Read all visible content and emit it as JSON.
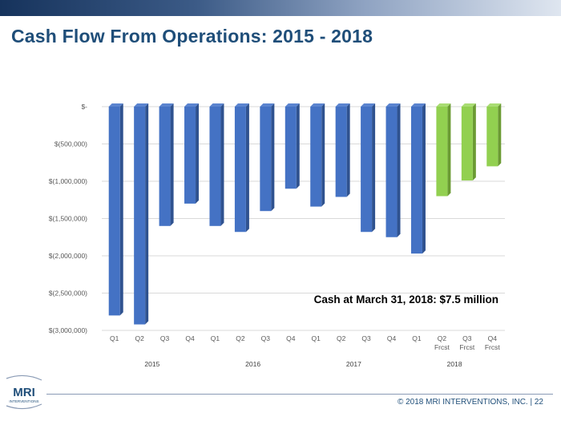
{
  "title": "Cash Flow From Operations: 2015 - 2018",
  "footer": {
    "copyright": "© 2018 MRI INTERVENTIONS, INC.  |  22"
  },
  "logo": {
    "text": "MRI",
    "subtitle": "INTERVENTIONS"
  },
  "colors": {
    "actual": "#4472c4",
    "forecast": "#92d050",
    "title": "#1f4e79"
  },
  "chart_data": {
    "type": "bar",
    "title": "Cash Flow From Operations: 2015 - 2018",
    "xlabel": "",
    "ylabel": "",
    "ylim": [
      -3000000,
      0
    ],
    "y_ticks": [
      {
        "value": 0,
        "label": "$-"
      },
      {
        "value": -500000,
        "label": "$(500,000)"
      },
      {
        "value": -1000000,
        "label": "$(1,000,000)"
      },
      {
        "value": -1500000,
        "label": "$(1,500,000)"
      },
      {
        "value": -2000000,
        "label": "$(2,000,000)"
      },
      {
        "value": -2500000,
        "label": "$(2,500,000)"
      },
      {
        "value": -3000000,
        "label": "$(3,000,000)"
      }
    ],
    "categories": [
      "Q1",
      "Q2",
      "Q3",
      "Q4",
      "Q1",
      "Q2",
      "Q3",
      "Q4",
      "Q1",
      "Q2",
      "Q3",
      "Q4",
      "Q1",
      "Q2",
      "Q3",
      "Q4"
    ],
    "sublabels": [
      "",
      "",
      "",
      "",
      "",
      "",
      "",
      "",
      "",
      "",
      "",
      "",
      "",
      "Frcst",
      "Frcst",
      "Frcst"
    ],
    "years": [
      {
        "label": "2015",
        "start": 0,
        "end": 3
      },
      {
        "label": "2016",
        "start": 4,
        "end": 7
      },
      {
        "label": "2017",
        "start": 8,
        "end": 11
      },
      {
        "label": "2018",
        "start": 12,
        "end": 15
      }
    ],
    "values": [
      -2800000,
      -2920000,
      -1600000,
      -1300000,
      -1600000,
      -1680000,
      -1400000,
      -1100000,
      -1340000,
      -1210000,
      -1680000,
      -1750000,
      -1970000,
      -1200000,
      -990000,
      -800000
    ],
    "forecast": [
      false,
      false,
      false,
      false,
      false,
      false,
      false,
      false,
      false,
      false,
      false,
      false,
      false,
      true,
      true,
      true
    ],
    "annotation": "Cash at March 31, 2018: $7.5 million",
    "grid": true
  }
}
